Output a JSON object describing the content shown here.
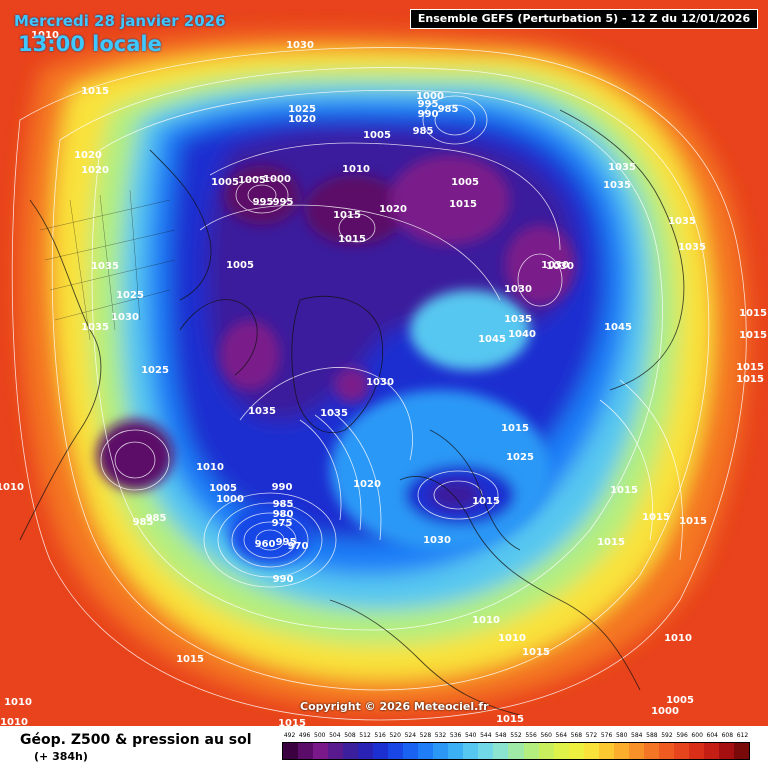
{
  "header": {
    "date_text": "Mercredi 28 janvier 2026",
    "time_text": "13:00 locale",
    "run_text": "Ensemble GEFS  (Perturbation 5)  -  12 Z du 12/01/2026"
  },
  "copyright": "Copyright © 2026 Meteociel.fr",
  "legend": {
    "title": "Géop. Z500 & pression au sol",
    "subtitle": "(+ 384h)",
    "scale_values": [
      "492",
      "496",
      "500",
      "504",
      "508",
      "512",
      "516",
      "520",
      "524",
      "528",
      "532",
      "536",
      "540",
      "544",
      "548",
      "552",
      "556",
      "560",
      "564",
      "568",
      "572",
      "576",
      "580",
      "584",
      "588",
      "592",
      "596",
      "600",
      "604",
      "608",
      "612"
    ],
    "scale_colors": [
      "#3a0040",
      "#5b0b68",
      "#7a1a8a",
      "#5a1a8f",
      "#3b1f9c",
      "#2a22b5",
      "#1c2fd0",
      "#1847e6",
      "#1a62f2",
      "#1f7ef7",
      "#2c98f6",
      "#3cb0f4",
      "#56c7f0",
      "#70d8e6",
      "#8be4cf",
      "#a0eaa8",
      "#b3ee7f",
      "#c9f05c",
      "#def24a",
      "#eef040",
      "#f9e23a",
      "#fcc931",
      "#fbad2b",
      "#f89228",
      "#f47624",
      "#ee5a20",
      "#e6441c",
      "#d92f18",
      "#c51e14",
      "#a50f10",
      "#7a0a0a"
    ]
  },
  "pressure_labels": [
    "1030",
    "1015",
    "1010",
    "1020",
    "1020",
    "1025",
    "1020",
    "1000",
    "995",
    "990",
    "985",
    "985",
    "1005",
    "1010",
    "1005",
    "995",
    "995",
    "1000",
    "1005",
    "1015",
    "1020",
    "1015",
    "1005",
    "1015",
    "1035",
    "1035",
    "1035",
    "1035",
    "1030",
    "1030",
    "1035",
    "1040",
    "1045",
    "1045",
    "1015",
    "1015",
    "1015",
    "1015",
    "1025",
    "1030",
    "1030",
    "1035",
    "1005",
    "1035",
    "1025",
    "1030",
    "1025",
    "1035",
    "1035",
    "1010",
    "1005",
    "1000",
    "990",
    "985",
    "980",
    "975",
    "970",
    "960",
    "995",
    "985",
    "985",
    "990",
    "1020",
    "1015",
    "1030",
    "1015",
    "1015",
    "1015",
    "1015",
    "1015",
    "1010",
    "1010",
    "1015",
    "1010",
    "1010",
    "1015",
    "1005",
    "1000",
    "1010",
    "1010",
    "1015",
    "1015"
  ]
}
